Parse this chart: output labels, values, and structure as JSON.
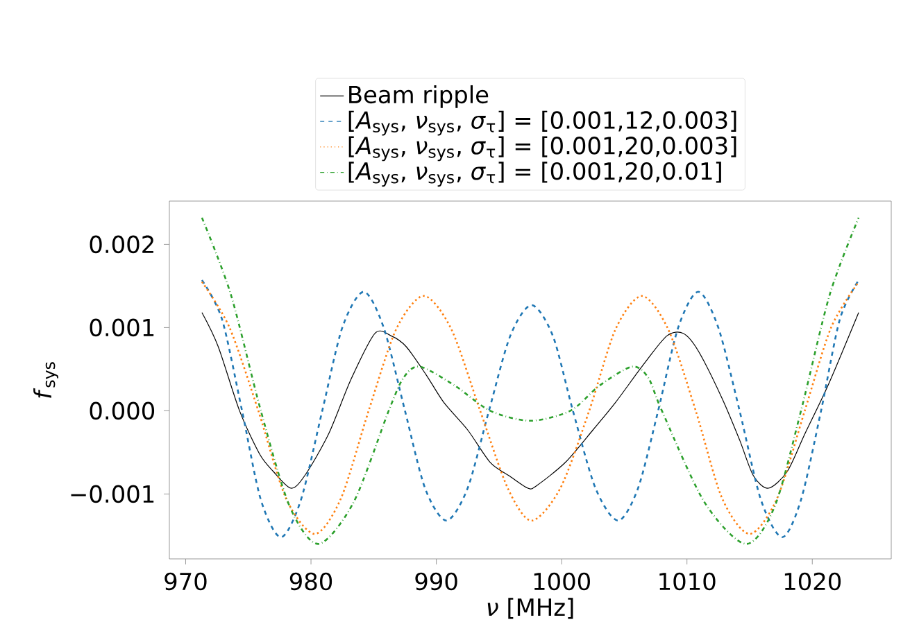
{
  "chart_data": {
    "type": "line",
    "xlabel": "*ν* [MHz]",
    "ylabel": "*f*$_{sys}$",
    "legend": "top",
    "xlim": [
      968.7,
      1026.3
    ],
    "ylim": [
      -0.00178,
      0.00252
    ],
    "xticks": [
      970,
      980,
      990,
      1000,
      1010,
      1020
    ],
    "yticks": [
      {
        "value": -0.001,
        "label": "−0.001"
      },
      {
        "value": 0,
        "label": "0.000"
      },
      {
        "value": 0.001,
        "label": "0.001"
      },
      {
        "value": 0.002,
        "label": "0.002"
      }
    ],
    "series": [
      {
        "name": "Beam ripple",
        "color": "#000000",
        "line_style": "solid",
        "x": [
          971.3,
          972.6,
          974.3,
          975.9,
          977.0,
          978.4,
          979.5,
          981.4,
          983.2,
          985.1,
          986.4,
          987.6,
          989.2,
          990.6,
          992.5,
          994.3,
          995.8,
          997.3,
          998.0,
          1000.3,
          1002.5,
          1004.3,
          1006.5,
          1008.4,
          1009.7,
          1010.9,
          1012.8,
          1014.2,
          1015.3,
          1016.5,
          1018.0,
          1019.4,
          1021.3,
          1023.7
        ],
        "values": [
          0.00118,
          0.00077,
          0.0,
          -0.00052,
          -0.00073,
          -0.00093,
          -0.00078,
          -0.00028,
          0.00038,
          0.00093,
          0.0009,
          0.00077,
          0.00043,
          0.0001,
          -0.00023,
          -0.00062,
          -0.00078,
          -0.00093,
          -0.0009,
          -0.00062,
          -0.00023,
          0.0001,
          0.00055,
          0.0009,
          0.00093,
          0.00072,
          0.00015,
          -0.00035,
          -0.00078,
          -0.00093,
          -0.00073,
          -0.00028,
          0.00032,
          0.00118
        ]
      },
      {
        "name": "[*A*$_{sys}$, *ν*$_{sys}$, *σ*$_{τ}$] = [0.001,12,0.003]",
        "color": "#1f77b4",
        "line_style": "dashed",
        "x": [
          971.3,
          972.9,
          974.5,
          976.0,
          977.6,
          979.2,
          980.9,
          982.5,
          984.2,
          985.8,
          987.5,
          989.1,
          990.8,
          992.5,
          994.2,
          995.9,
          997.6,
          999.3,
          1000.9,
          1002.7,
          1004.5,
          1006.1,
          1007.7,
          1009.3,
          1010.9,
          1012.5,
          1014.2,
          1015.9,
          1017.6,
          1019.1,
          1020.7,
          1022.2,
          1023.7
        ],
        "values": [
          0.00157,
          0.0011,
          0,
          -0.00107,
          -0.00152,
          -0.00107,
          0,
          0.001,
          0.00143,
          0.001,
          0,
          -0.00093,
          -0.00132,
          -0.00093,
          0,
          0.0009,
          0.00127,
          0.0009,
          0,
          -0.00093,
          -0.00132,
          -0.00093,
          0,
          0.001,
          0.00143,
          0.001,
          0,
          -0.00107,
          -0.00152,
          -0.00107,
          0,
          0.0011,
          0.00157
        ]
      },
      {
        "name": "[*A*$_{sys}$, *ν*$_{sys}$, *σ*$_{τ}$] = [0.001,20,0.003]",
        "color": "#ff7f0e",
        "line_style": "dotted",
        "x": [
          971.3,
          973.5,
          975.8,
          978.0,
          980.3,
          982.4,
          984.6,
          986.8,
          989.0,
          991.2,
          993.5,
          995.7,
          997.6,
          999.9,
          1002.2,
          1004.3,
          1006.4,
          1008.5,
          1010.7,
          1012.8,
          1015.0,
          1017.2,
          1019.4,
          1021.5,
          1023.7
        ],
        "values": [
          0.00155,
          0.001,
          0,
          -0.00105,
          -0.00148,
          -0.00105,
          0,
          0.00098,
          0.00138,
          0.00098,
          0,
          -0.00093,
          -0.00132,
          -0.00093,
          0,
          0.00098,
          0.00138,
          0.00098,
          0,
          -0.00105,
          -0.00148,
          -0.00105,
          0,
          0.001,
          0.00155
        ]
      },
      {
        "name": "[*A*$_{sys}$, *ν*$_{sys}$, *σ*$_{τ}$] = [0.001,20,0.01]",
        "color": "#2ca02c",
        "line_style": "dashdot",
        "x": [
          971.3,
          973.6,
          976.0,
          978.3,
          980.6,
          983.4,
          986.2,
          987.4,
          988.7,
          991.5,
          994.3,
          997.5,
          1000.7,
          1003.0,
          1005.6,
          1006.9,
          1008.0,
          1011.4,
          1014.7,
          1017.0,
          1019.1,
          1021.4,
          1023.7
        ],
        "values": [
          0.00232,
          0.0014,
          0,
          -0.00115,
          -0.0016,
          -0.0011,
          0,
          0.0004,
          0.00053,
          0.0003,
          0,
          -0.00012,
          0,
          0.0003,
          0.00053,
          0.0004,
          0,
          -0.0011,
          -0.0016,
          -0.00115,
          0,
          0.0014,
          0.00232
        ]
      }
    ]
  }
}
